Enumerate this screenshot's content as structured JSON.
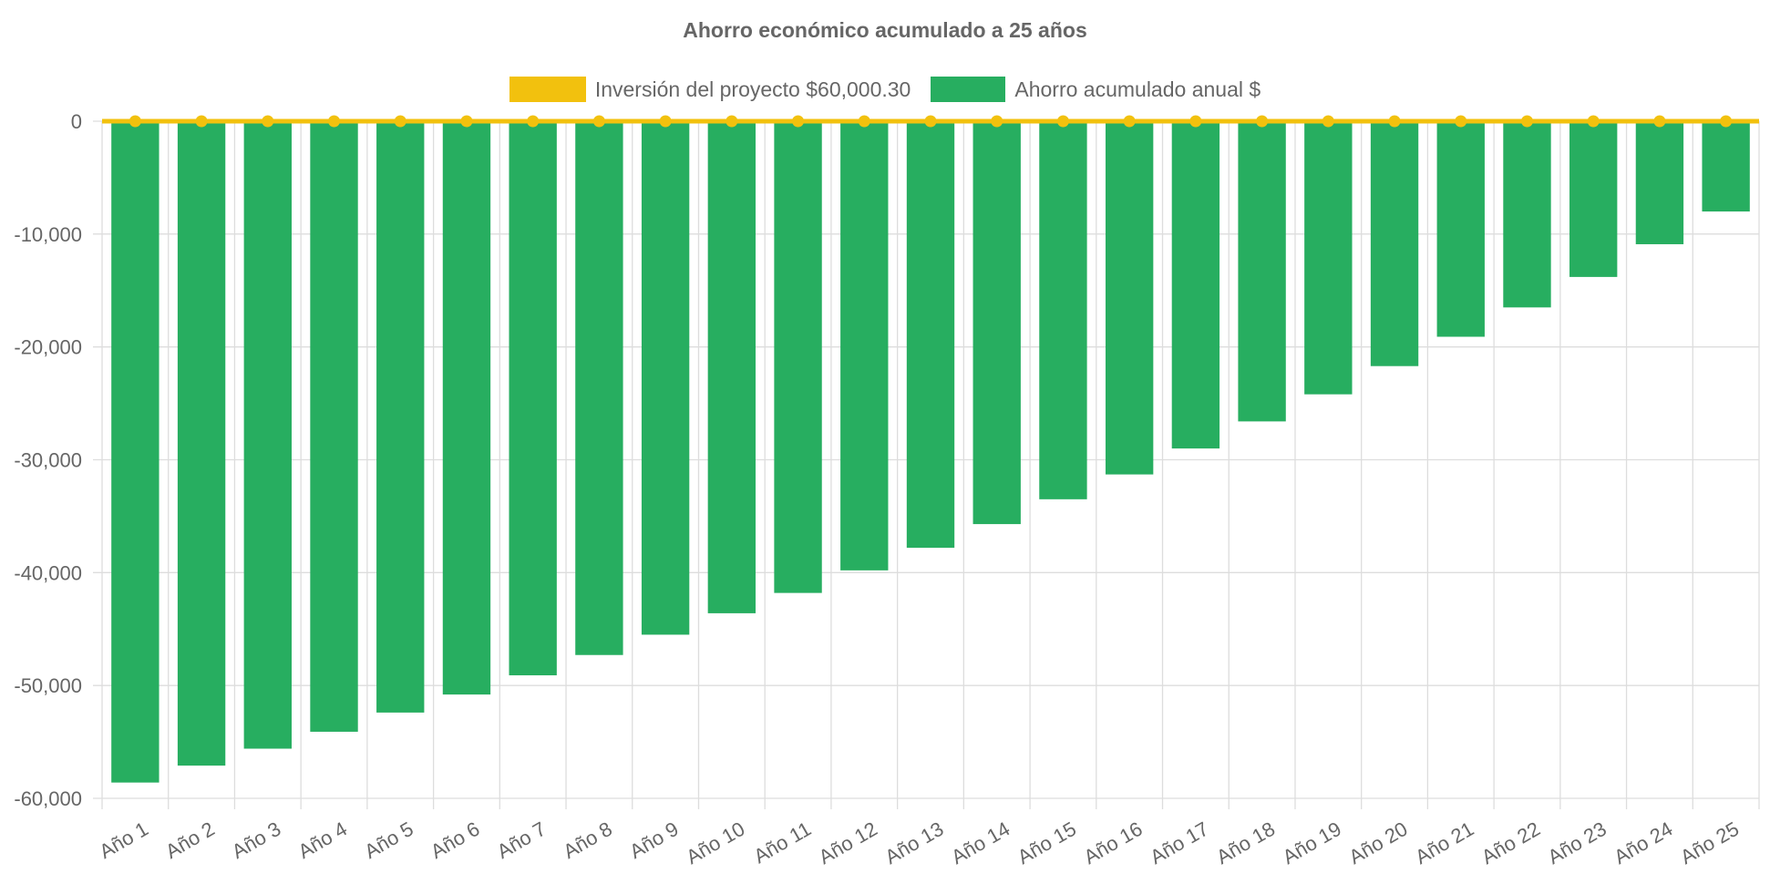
{
  "chart_data": {
    "type": "bar",
    "title": "Ahorro económico acumulado a 25 años",
    "categories": [
      "Año 1",
      "Año 2",
      "Año 3",
      "Año 4",
      "Año 5",
      "Año 6",
      "Año 7",
      "Año 8",
      "Año 9",
      "Año 10",
      "Año 11",
      "Año 12",
      "Año 13",
      "Año 14",
      "Año 15",
      "Año 16",
      "Año 17",
      "Año 18",
      "Año 19",
      "Año 20",
      "Año 21",
      "Año 22",
      "Año 23",
      "Año 24",
      "Año 25"
    ],
    "series": [
      {
        "name": "Inversión del proyecto $60,000.30",
        "type": "line",
        "color": "#f2c10e",
        "values": [
          0,
          0,
          0,
          0,
          0,
          0,
          0,
          0,
          0,
          0,
          0,
          0,
          0,
          0,
          0,
          0,
          0,
          0,
          0,
          0,
          0,
          0,
          0,
          0,
          0
        ]
      },
      {
        "name": "Ahorro acumulado anual $",
        "type": "bar",
        "color": "#27ae60",
        "values": [
          -58600,
          -57100,
          -55600,
          -54100,
          -52400,
          -50800,
          -49100,
          -47300,
          -45500,
          -43600,
          -41800,
          -39800,
          -37800,
          -35700,
          -33500,
          -31300,
          -29000,
          -26600,
          -24200,
          -21700,
          -19100,
          -16500,
          -13800,
          -10900,
          -8000
        ]
      }
    ],
    "ylim": [
      -60000,
      0
    ],
    "yticks": [
      "0",
      "-10,000",
      "-20,000",
      "-30,000",
      "-40,000",
      "-50,000",
      "-60,000"
    ],
    "ytick_values": [
      0,
      -10000,
      -20000,
      -30000,
      -40000,
      -50000,
      -60000
    ],
    "xlabel": "",
    "ylabel": "",
    "grid": true,
    "legend_position": "top"
  }
}
